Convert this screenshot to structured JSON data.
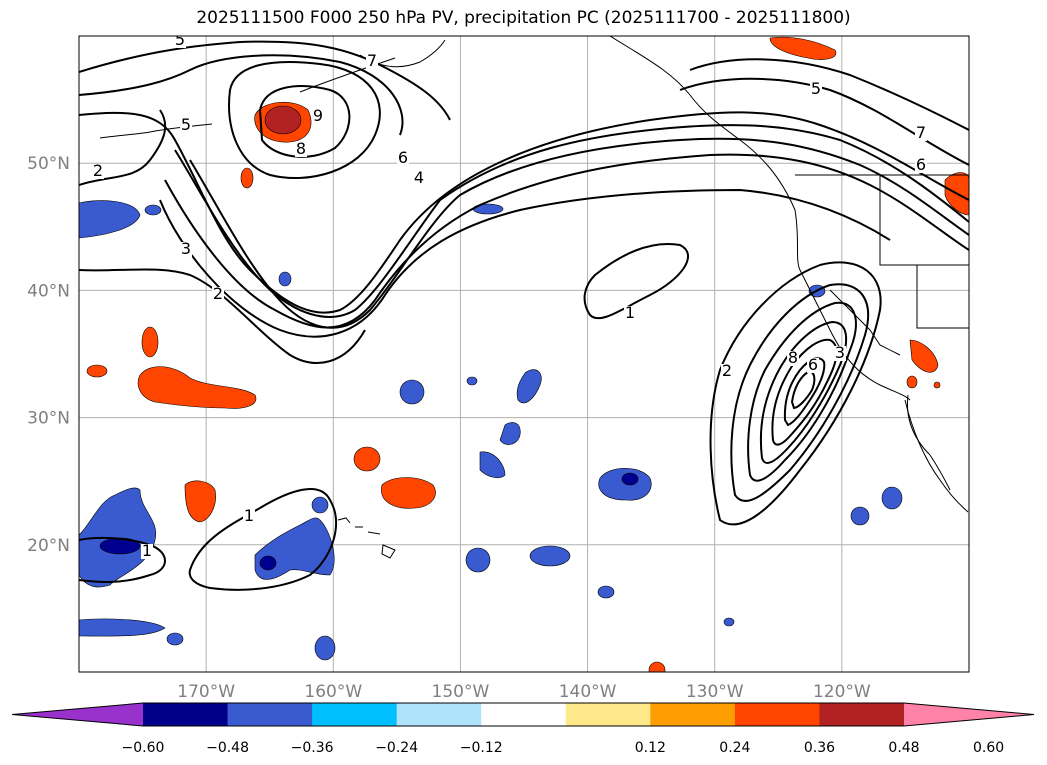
{
  "title": "2025111500 F000 250 hPa PV, precipitation PC (2025111700 - 2025111800)",
  "map": {
    "lon_range": [
      -180,
      -110
    ],
    "lat_range": [
      10,
      60
    ],
    "lat_ticks": [
      {
        "value": 50,
        "label": "50°N"
      },
      {
        "value": 40,
        "label": "40°N"
      },
      {
        "value": 30,
        "label": "30°N"
      },
      {
        "value": 20,
        "label": "20°N"
      }
    ],
    "lon_ticks": [
      {
        "value": -170,
        "label": "170°W"
      },
      {
        "value": -160,
        "label": "160°W"
      },
      {
        "value": -150,
        "label": "150°W"
      },
      {
        "value": -140,
        "label": "140°W"
      },
      {
        "value": -130,
        "label": "130°W"
      },
      {
        "value": -120,
        "label": "120°W"
      }
    ],
    "gridlines": true,
    "pv_contour_labels": [
      "5",
      "7",
      "9",
      "8",
      "6",
      "4",
      "5",
      "2",
      "3",
      "2",
      "1",
      "1",
      "1",
      "2",
      "8",
      "6",
      "3",
      "5",
      "7",
      "6"
    ],
    "colors": {
      "positive_low": "#ffe98a",
      "positive_mid": "#ff9e00",
      "positive_high": "#ff4500",
      "positive_max": "#b22222",
      "negative_low": "#00bfff",
      "negative_mid": "#3a5bd0",
      "negative_max": "#000090",
      "contour": "#000000",
      "grid": "#b0b0b0"
    }
  },
  "colorbar": {
    "ticks": [
      "−0.60",
      "−0.48",
      "−0.36",
      "−0.24",
      "−0.12",
      "0.12",
      "0.24",
      "0.36",
      "0.48",
      "0.60"
    ],
    "colors": [
      "#9932cc",
      "#00008b",
      "#3a5bd0",
      "#00bfff",
      "#aee3fb",
      "#ffffff",
      "#ffe98a",
      "#ff9e00",
      "#ff4500",
      "#b22222",
      "#ff82a8"
    ]
  }
}
